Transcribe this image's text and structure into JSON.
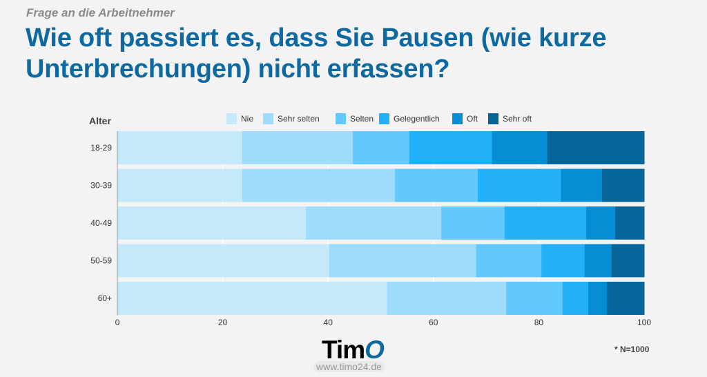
{
  "subtitle": "Frage an die Arbeitnehmer",
  "title": "Wie oft passiert es, dass Sie Pausen (wie kurze Unterbrechungen) nicht erfassen?",
  "chart_data": {
    "type": "bar",
    "orientation": "horizontal",
    "stacked": true,
    "ylabel": "Alter",
    "categories": [
      "18-29",
      "30-39",
      "40-49",
      "50-59",
      "60+"
    ],
    "series": [
      {
        "name": "Nie",
        "color": "#c4e9fb",
        "values": [
          23.7,
          23.7,
          35.8,
          40.2,
          51.2
        ]
      },
      {
        "name": "Sehr selten",
        "color": "#9ddcfc",
        "values": [
          21.0,
          29.0,
          25.7,
          27.9,
          22.6
        ]
      },
      {
        "name": "Selten",
        "color": "#63c8fb",
        "values": [
          10.7,
          15.7,
          12.0,
          12.4,
          10.7
        ]
      },
      {
        "name": "Gelegentlich",
        "color": "#22b1f8",
        "values": [
          15.7,
          15.8,
          15.5,
          8.2,
          4.9
        ]
      },
      {
        "name": "Oft",
        "color": "#068dd3",
        "values": [
          10.5,
          7.8,
          5.5,
          5.1,
          3.5
        ]
      },
      {
        "name": "Sehr oft",
        "color": "#056498",
        "values": [
          18.4,
          8.0,
          5.5,
          6.2,
          7.1
        ]
      }
    ],
    "xlim": [
      0,
      100
    ],
    "xticks": [
      "0",
      "20",
      "40",
      "60",
      "80",
      "100"
    ],
    "grid": true,
    "legend": "top"
  },
  "logo": {
    "text": "Tim",
    "accent": "O"
  },
  "url": "www.timo24.de",
  "note": "* N=1000"
}
